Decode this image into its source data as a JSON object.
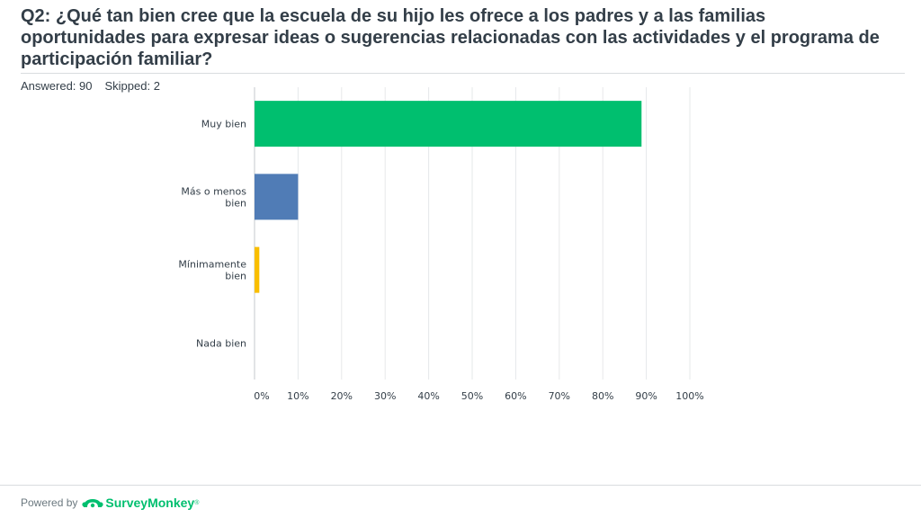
{
  "question": {
    "title": "Q2: ¿Qué tan bien cree que la escuela de su hijo les ofrece a los padres y a las familias oportunidades para expresar ideas o sugerencias relacionadas con las actividades y el programa de participación familiar?",
    "answered_label": "Answered: 90",
    "skipped_label": "Skipped: 2"
  },
  "footer": {
    "powered_by": "Powered by",
    "brand": "SurveyMonkey",
    "trademark": "®",
    "brand_color": "#00bf6f"
  },
  "chart_data": {
    "type": "bar",
    "orientation": "horizontal",
    "categories": [
      [
        "Muy bien"
      ],
      [
        "Más o menos",
        "bien"
      ],
      [
        "Mínimamente",
        "bien"
      ],
      [
        "Nada bien"
      ]
    ],
    "values": [
      88.9,
      10.0,
      1.1,
      0.0
    ],
    "colors": [
      "#00bf6f",
      "#507cb6",
      "#f9be00",
      "#6bc8cd"
    ],
    "xlim": [
      0,
      100
    ],
    "xticks": [
      0,
      10,
      20,
      30,
      40,
      50,
      60,
      70,
      80,
      90,
      100
    ],
    "xtick_labels": [
      "0%",
      "10%",
      "20%",
      "30%",
      "40%",
      "50%",
      "60%",
      "70%",
      "80%",
      "90%",
      "100%"
    ],
    "grid": true,
    "legend": "none",
    "title": "",
    "xlabel": "",
    "ylabel": ""
  }
}
